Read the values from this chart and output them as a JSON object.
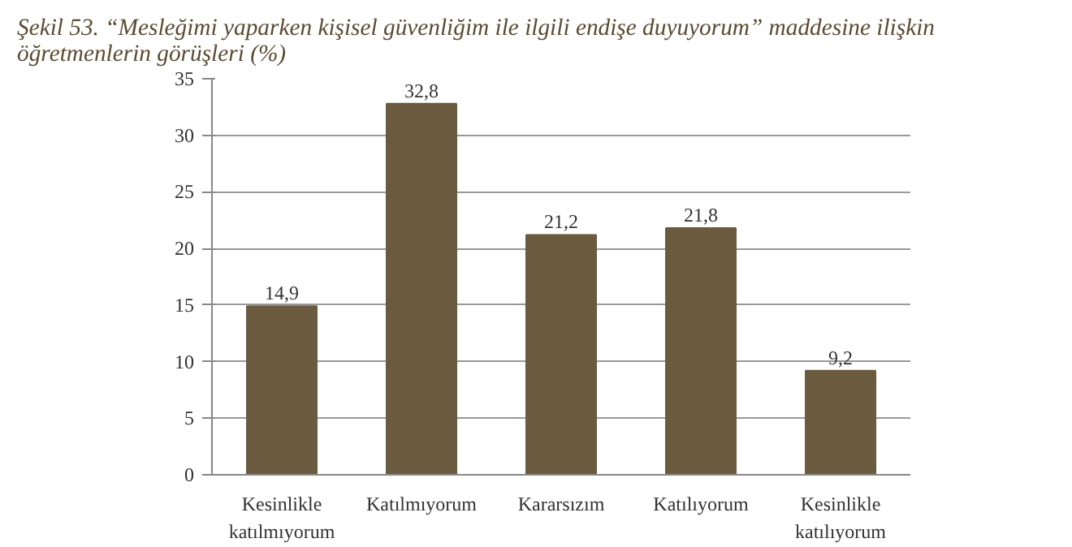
{
  "chart_data": {
    "type": "bar",
    "title": "Şekil 53. “Mesleğimi yaparken kişisel güvenliğim ile ilgili endişe duyuyorum” maddesine ilişkin öğretmenlerin görüşleri (%)",
    "categories": [
      "Kesinlikle katılmıyorum",
      "Katılmıyorum",
      "Kararsızım",
      "Katılıyorum",
      "Kesinlikle katılıyorum"
    ],
    "values": [
      14.9,
      32.8,
      21.2,
      21.8,
      9.2
    ],
    "value_labels": [
      "14,9",
      "32,8",
      "21,2",
      "21,8",
      "9,2"
    ],
    "color": "#6b5b3e",
    "ylim": [
      0,
      35
    ],
    "yticks": [
      0,
      5,
      10,
      15,
      20,
      25,
      30,
      35
    ],
    "grid": "y"
  }
}
